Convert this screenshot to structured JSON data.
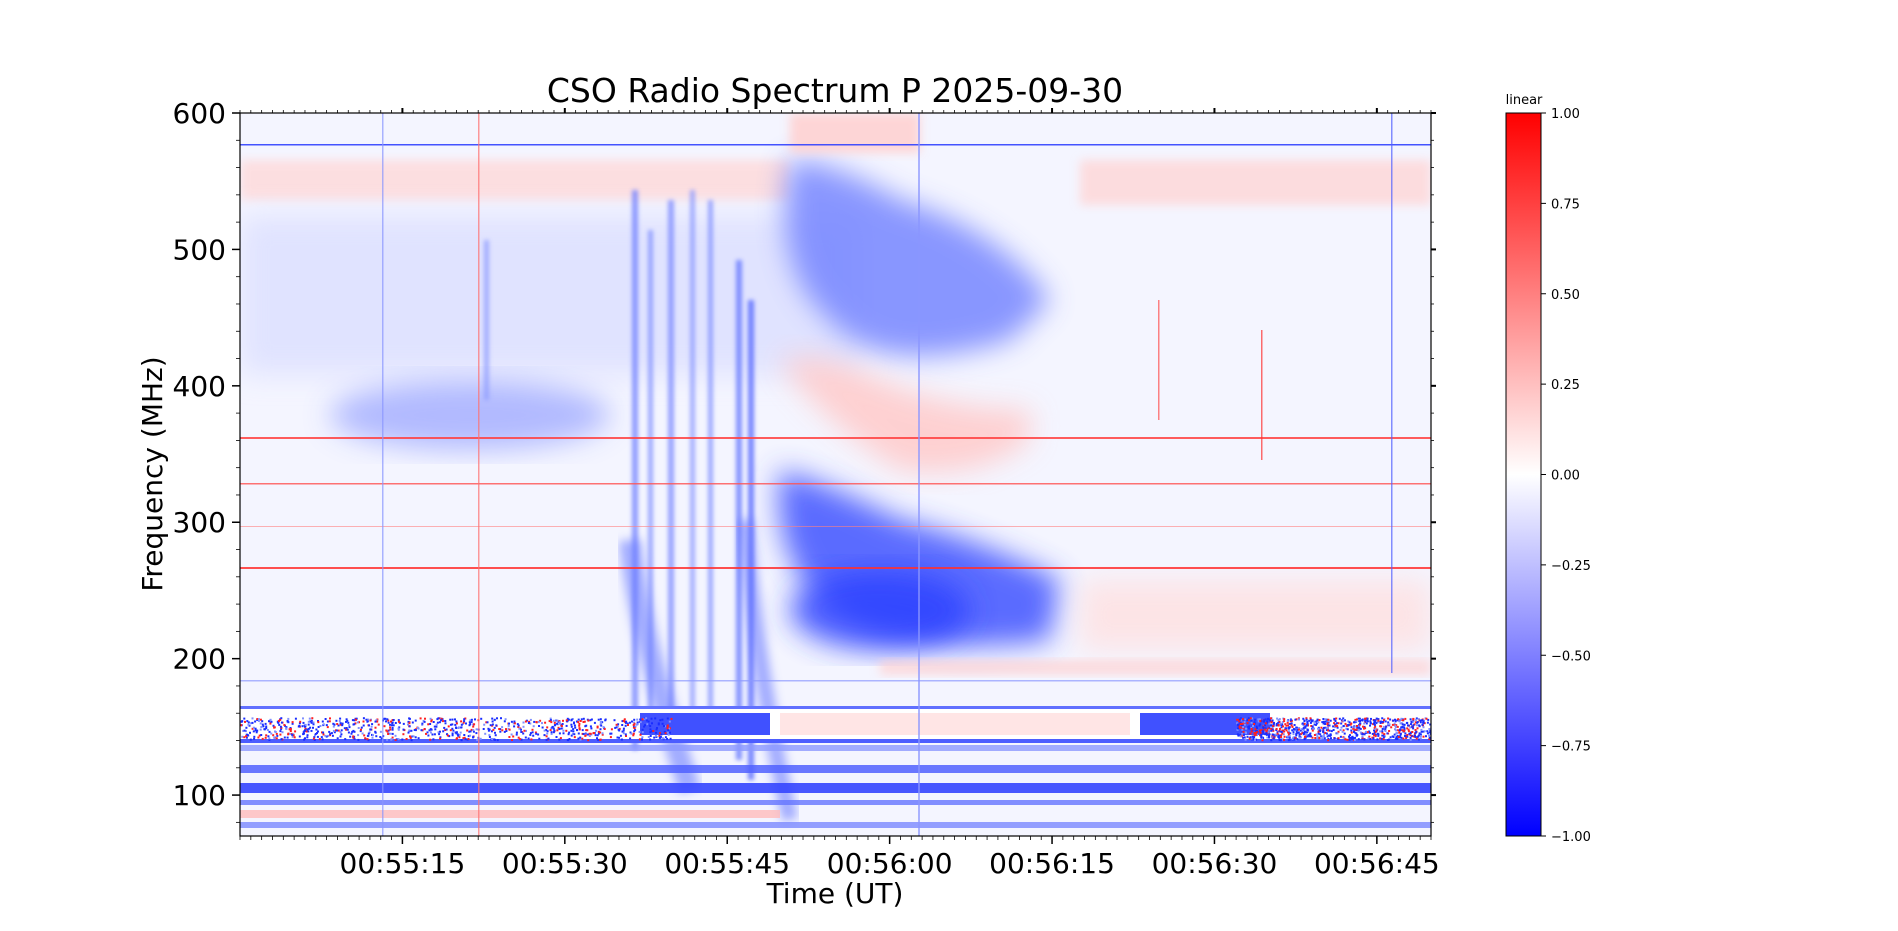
{
  "chart_data": {
    "type": "heatmap",
    "title": "CSO Radio Spectrum P 2025-09-30",
    "xlabel": "Time (UT)",
    "ylabel": "Frequency (MHz)",
    "x_ticks": [
      "00:55:15",
      "00:55:30",
      "00:55:45",
      "00:56:00",
      "00:56:15",
      "00:56:30",
      "00:56:45"
    ],
    "x_tick_seconds": [
      15,
      30,
      45,
      60,
      75,
      90,
      105
    ],
    "xlim_seconds": [
      0,
      110
    ],
    "x_origin": "00:55:00",
    "y_ticks": [
      100,
      200,
      300,
      400,
      500,
      600
    ],
    "ylim": [
      70,
      600
    ],
    "colorbar": {
      "label": "linear",
      "ticks": [
        "1.00",
        "0.75",
        "0.50",
        "0.25",
        "0.00",
        "−0.25",
        "−0.50",
        "−0.75",
        "−1.00"
      ],
      "tick_values": [
        1.0,
        0.75,
        0.5,
        0.25,
        0.0,
        -0.25,
        -0.5,
        -0.75,
        -1.0
      ],
      "range": [
        -1.0,
        1.0
      ],
      "colormap": "bwr",
      "low_color": "#0000ff",
      "mid_color": "#ffffff",
      "high_color": "#ff0000"
    },
    "features": {
      "drift_burst_seconds": [
        40,
        52
      ],
      "strong_emission_seconds": [
        51,
        75
      ],
      "rfi_band_mhz": [
        138,
        160
      ],
      "rfi_lines_mhz": [
        577,
        363,
        329,
        267
      ]
    }
  }
}
